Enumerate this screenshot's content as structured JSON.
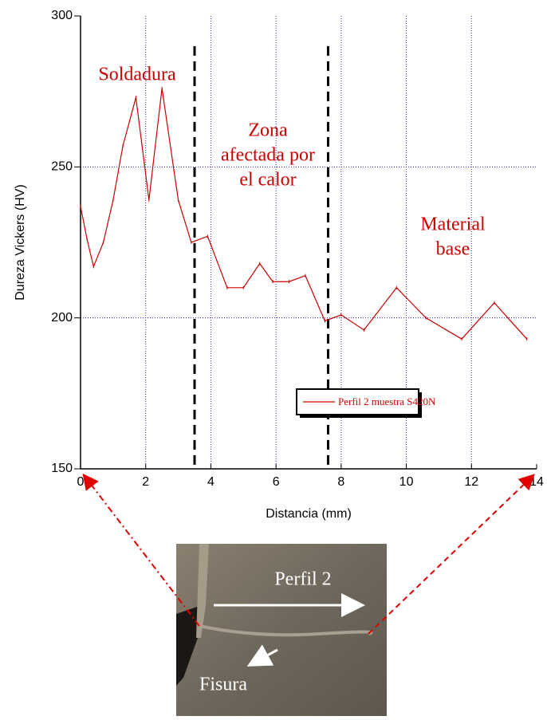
{
  "chart_data": {
    "type": "line",
    "y_label": "Dureza Vickers (HV)",
    "x_label": "Distancia (mm)",
    "x": [
      0,
      0.2,
      0.4,
      0.7,
      1.0,
      1.3,
      1.7,
      2.1,
      2.5,
      3.0,
      3.4,
      3.9,
      4.5,
      5.0,
      5.5,
      5.9,
      6.4,
      6.9,
      7.5,
      8.0,
      8.7,
      9.7,
      10.6,
      11.7,
      12.7,
      13.7
    ],
    "series": [
      {
        "name": "Perfil 2 muestra S420N",
        "color": "#cc0000",
        "values": [
          237,
          226,
          217,
          225,
          239,
          257,
          273,
          239,
          276,
          239,
          225,
          227,
          210,
          210,
          218,
          212,
          212,
          214,
          199,
          201,
          196,
          210,
          200,
          193,
          205,
          193
        ]
      }
    ],
    "xlim": [
      0,
      14
    ],
    "xticks": [
      0,
      2,
      4,
      6,
      8,
      10,
      12,
      14
    ],
    "ylim": [
      150,
      300
    ],
    "yticks": [
      150,
      200,
      250,
      300
    ],
    "grid": true,
    "region_boundaries": [
      3.5,
      7.6
    ],
    "region_top": 290,
    "annotations": [
      [
        "Soldadura"
      ],
      [
        "Zona",
        "afectada por",
        "el calor"
      ],
      [
        "Material",
        "base"
      ]
    ],
    "legend": "lower right"
  },
  "photo": {
    "labels": [
      "Perfil 2",
      "Fisura"
    ]
  }
}
